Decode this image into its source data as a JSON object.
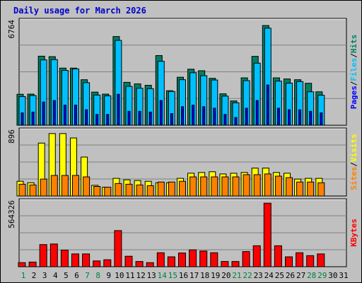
{
  "chart_data": {
    "type": "bar",
    "title": "Daily usage for March 2026",
    "days": [
      "1",
      "2",
      "3",
      "4",
      "5",
      "6",
      "7",
      "8",
      "9",
      "10",
      "11",
      "12",
      "13",
      "14",
      "15",
      "16",
      "17",
      "18",
      "19",
      "20",
      "21",
      "22",
      "23",
      "24",
      "25",
      "26",
      "27",
      "28",
      "29",
      "30",
      "31"
    ],
    "weekend_days": [
      "1",
      "7",
      "8",
      "14",
      "15",
      "21",
      "22",
      "28",
      "29"
    ],
    "colors": {
      "hits": "#008060",
      "files": "#00c0ff",
      "pages": "#0000ff",
      "visits": "#ffff00",
      "sites": "#ff8000",
      "kbytes": "#ff0000",
      "weekday": "#000000",
      "weekend": "#008040",
      "title": "#0000cc",
      "grid": "#808080",
      "background": "#c0c0c0"
    },
    "panels": [
      {
        "id": "hits-files-pages",
        "ymax": 6764,
        "ymax_label": "6764",
        "side_legend": [
          "Pages",
          "Files",
          "Hits"
        ],
        "series": [
          {
            "name": "Hits",
            "color": "#008060",
            "values": [
              2000,
              2010,
              4460,
              4430,
              3690,
              3690,
              2940,
              2140,
              2010,
              5730,
              2770,
              2670,
              2580,
              4500,
              2230,
              3100,
              3620,
              3520,
              3030,
              2030,
              1570,
              3060,
              4450,
              6440,
              3060,
              2990,
              2940,
              2710,
              2160,
              0,
              0
            ]
          },
          {
            "name": "Files",
            "color": "#00c0ff",
            "values": [
              1850,
              1920,
              4220,
              4240,
              3540,
              3640,
              2750,
              1950,
              1900,
              5480,
              2510,
              2390,
              2360,
              4130,
              2180,
              2940,
              3390,
              3200,
              2920,
              1880,
              1450,
              2880,
              4010,
              6270,
              2850,
              2720,
              2820,
              2160,
              1940,
              0,
              0
            ]
          },
          {
            "name": "Pages",
            "color": "#0000ff",
            "values": [
              800,
              850,
              1500,
              1600,
              1300,
              1300,
              1000,
              700,
              700,
              2000,
              900,
              900,
              850,
              1600,
              750,
              1200,
              1300,
              1200,
              1100,
              700,
              500,
              1100,
              1600,
              2600,
              1100,
              1000,
              1000,
              900,
              800,
              0,
              0
            ]
          }
        ]
      },
      {
        "id": "visits-sites",
        "ymax": 896,
        "ymax_label": "896",
        "side_legend": [
          "Sites",
          "Visits"
        ],
        "series": [
          {
            "name": "Visits",
            "color": "#ffff00",
            "values": [
              200,
              180,
              720,
              850,
              850,
              790,
              530,
              145,
              120,
              240,
              220,
              210,
              200,
              180,
              180,
              240,
              310,
              320,
              330,
              300,
              310,
              320,
              380,
              380,
              320,
              310,
              230,
              240,
              240,
              0,
              0
            ]
          },
          {
            "name": "Sites",
            "color": "#ff8000",
            "values": [
              160,
              150,
              230,
              280,
              280,
              280,
              260,
              130,
              120,
              170,
              160,
              150,
              140,
              190,
              190,
              200,
              260,
              260,
              260,
              260,
              260,
              290,
              290,
              300,
              270,
              250,
              190,
              190,
              180,
              0,
              0
            ]
          }
        ]
      },
      {
        "id": "kbytes",
        "ymax": 564326,
        "ymax_label": "564326",
        "side_legend": [
          "KBytes"
        ],
        "series": [
          {
            "name": "KBytes",
            "color": "#ff0000",
            "values": [
              35000,
              40000,
              190000,
              195000,
              142000,
              110000,
              110000,
              50000,
              60000,
              310000,
              90000,
              45000,
              35000,
              120000,
              85000,
              118000,
              145000,
              135000,
              120000,
              45000,
              45000,
              130000,
              180000,
              545000,
              180000,
              85000,
              120000,
              95000,
              110000,
              0,
              0
            ]
          }
        ]
      }
    ]
  }
}
